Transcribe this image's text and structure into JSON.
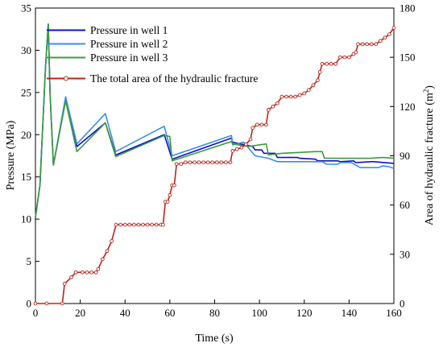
{
  "chart_data": {
    "type": "line",
    "xlabel": "Time (s)",
    "ylabel_left": "Pressure (MPa)",
    "ylabel_right_main": "Area of hydraulic fracture (m",
    "ylabel_right_sup": "2",
    "ylabel_right_close": ")",
    "xlim": [
      0,
      160
    ],
    "ylim_left": [
      0,
      35
    ],
    "ylim_right": [
      0,
      180
    ],
    "x_ticks": [
      "0",
      "20",
      "40",
      "60",
      "80",
      "100",
      "120",
      "140",
      "160"
    ],
    "y_left_ticks": [
      "0",
      "5",
      "10",
      "15",
      "20",
      "25",
      "30",
      "35"
    ],
    "y_right_ticks": [
      "0",
      "30",
      "60",
      "90",
      "120",
      "150",
      "180"
    ],
    "legend_position": "top-left",
    "series": [
      {
        "name": "Pressure in well 1",
        "axis": "left",
        "color": "#1010c8",
        "points": [
          [
            0,
            10.2
          ],
          [
            2,
            14
          ],
          [
            4.5,
            28
          ],
          [
            5.7,
            33.1
          ],
          [
            6.5,
            25
          ],
          [
            8,
            16.4
          ],
          [
            13.5,
            24.2
          ],
          [
            18.5,
            18.6
          ],
          [
            31.2,
            21.4
          ],
          [
            35.8,
            17.6
          ],
          [
            57.5,
            20
          ],
          [
            61,
            17.1
          ],
          [
            87.5,
            19.6
          ],
          [
            88,
            19.1
          ],
          [
            97,
            18.6
          ],
          [
            98,
            18.2
          ],
          [
            101,
            18.2
          ],
          [
            102,
            17.8
          ],
          [
            107,
            17.8
          ],
          [
            108,
            17.3
          ],
          [
            117,
            17.3
          ],
          [
            118,
            17.2
          ],
          [
            125,
            17.1
          ],
          [
            126,
            16.9
          ],
          [
            135,
            16.9
          ],
          [
            136,
            16.8
          ],
          [
            142,
            16.9
          ],
          [
            143,
            16.7
          ],
          [
            150,
            16.8
          ],
          [
            151,
            16.8
          ],
          [
            160,
            16.6
          ]
        ]
      },
      {
        "name": "Pressure in well 2",
        "axis": "left",
        "color": "#3a8ee8",
        "points": [
          [
            0,
            10.2
          ],
          [
            2,
            14
          ],
          [
            4.5,
            28
          ],
          [
            5.7,
            33.1
          ],
          [
            6.5,
            25
          ],
          [
            8,
            16.4
          ],
          [
            13.5,
            24.5
          ],
          [
            18.5,
            18.9
          ],
          [
            31.2,
            22.5
          ],
          [
            35.8,
            18
          ],
          [
            57.5,
            21
          ],
          [
            61,
            17.5
          ],
          [
            87.5,
            19.9
          ],
          [
            88,
            18.8
          ],
          [
            93,
            19.1
          ],
          [
            98,
            17.5
          ],
          [
            104,
            17.2
          ],
          [
            108,
            16.8
          ],
          [
            117,
            16.8
          ],
          [
            128,
            16.8
          ],
          [
            130,
            16.5
          ],
          [
            135,
            16.5
          ],
          [
            136,
            16.7
          ],
          [
            141,
            16.7
          ],
          [
            143,
            16.4
          ],
          [
            145,
            16.1
          ],
          [
            153,
            16.1
          ],
          [
            155,
            16.3
          ],
          [
            158,
            16.2
          ],
          [
            160,
            16.0
          ]
        ]
      },
      {
        "name": "Pressure in well 3",
        "axis": "left",
        "color": "#3d9a3d",
        "points": [
          [
            0,
            10.2
          ],
          [
            2,
            14
          ],
          [
            4.5,
            28
          ],
          [
            5.7,
            33.1
          ],
          [
            6.5,
            25
          ],
          [
            8,
            16.4
          ],
          [
            13.5,
            24
          ],
          [
            18.5,
            18
          ],
          [
            31.2,
            21.4
          ],
          [
            35.8,
            17.4
          ],
          [
            57.5,
            19.9
          ],
          [
            60,
            19.8
          ],
          [
            61,
            16.9
          ],
          [
            87.5,
            19.2
          ],
          [
            88,
            18.9
          ],
          [
            95,
            18.6
          ],
          [
            100,
            18.8
          ],
          [
            103,
            18.9
          ],
          [
            104,
            17.6
          ],
          [
            110,
            17.8
          ],
          [
            125,
            18
          ],
          [
            128,
            18
          ],
          [
            129,
            17.2
          ],
          [
            135,
            17.2
          ],
          [
            140,
            17.2
          ],
          [
            145,
            17.2
          ],
          [
            150,
            17.2
          ],
          [
            155,
            17.3
          ],
          [
            160,
            17.2
          ]
        ]
      },
      {
        "name": "The total area of the hydraulic fracture",
        "axis": "right",
        "color": "#b8251a",
        "points": [
          [
            0,
            0
          ],
          [
            5,
            0
          ],
          [
            12,
            0
          ],
          [
            13,
            12
          ],
          [
            16,
            16
          ],
          [
            18,
            19
          ],
          [
            21,
            19
          ],
          [
            23,
            19
          ],
          [
            25,
            19
          ],
          [
            27,
            19
          ],
          [
            28,
            21
          ],
          [
            30,
            27
          ],
          [
            32,
            32
          ],
          [
            34,
            38
          ],
          [
            36,
            48
          ],
          [
            38,
            48
          ],
          [
            40,
            48
          ],
          [
            42,
            48
          ],
          [
            44,
            48
          ],
          [
            46,
            48
          ],
          [
            48,
            48
          ],
          [
            50,
            48
          ],
          [
            52,
            48
          ],
          [
            54,
            48
          ],
          [
            56,
            48
          ],
          [
            57,
            48
          ],
          [
            58,
            62
          ],
          [
            59,
            62
          ],
          [
            60,
            66
          ],
          [
            61,
            72
          ],
          [
            62,
            72
          ],
          [
            63,
            85
          ],
          [
            65,
            85
          ],
          [
            67,
            86
          ],
          [
            69,
            86
          ],
          [
            71,
            86
          ],
          [
            73,
            86
          ],
          [
            75,
            86
          ],
          [
            77,
            86
          ],
          [
            79,
            86
          ],
          [
            81,
            86
          ],
          [
            83,
            86
          ],
          [
            85,
            86
          ],
          [
            87,
            86
          ],
          [
            88,
            93
          ],
          [
            90,
            94
          ],
          [
            92,
            95
          ],
          [
            94,
            97
          ],
          [
            96,
            100
          ],
          [
            97,
            107
          ],
          [
            99,
            109
          ],
          [
            101,
            109
          ],
          [
            103,
            109
          ],
          [
            104,
            118
          ],
          [
            106,
            120
          ],
          [
            108,
            122
          ],
          [
            110,
            126
          ],
          [
            112,
            126
          ],
          [
            114,
            126
          ],
          [
            116,
            126
          ],
          [
            118,
            127
          ],
          [
            120,
            128
          ],
          [
            122,
            130
          ],
          [
            124,
            133
          ],
          [
            126,
            136
          ],
          [
            127,
            141
          ],
          [
            128,
            146
          ],
          [
            130,
            146
          ],
          [
            132,
            146
          ],
          [
            134,
            146
          ],
          [
            136,
            150
          ],
          [
            138,
            150
          ],
          [
            140,
            150
          ],
          [
            142,
            152
          ],
          [
            143,
            153
          ],
          [
            144,
            158
          ],
          [
            146,
            158
          ],
          [
            148,
            158
          ],
          [
            150,
            158
          ],
          [
            152,
            158
          ],
          [
            154,
            160
          ],
          [
            156,
            162
          ],
          [
            158,
            164
          ],
          [
            160,
            168
          ]
        ]
      }
    ]
  }
}
